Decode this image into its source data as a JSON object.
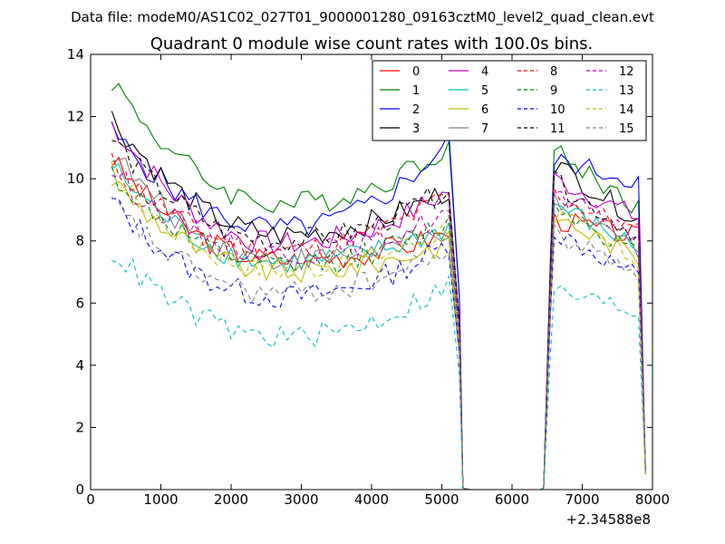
{
  "chart_data": {
    "type": "line",
    "suptitle": "Data file: modeM0/AS1C02_027T01_9000001280_09163cztM0_level2_quad_clean.evt",
    "title": "Quadrant 0 module wise count rates with 100.0s bins.",
    "xlabel": "",
    "ylabel": "",
    "x_offset_label": "+2.34588e8",
    "xlim": [
      0,
      8000
    ],
    "ylim": [
      0,
      14
    ],
    "xticks": [
      0,
      1000,
      2000,
      3000,
      4000,
      5000,
      6000,
      7000,
      8000
    ],
    "xtick_labels": [
      "0",
      "1000",
      "2000",
      "3000",
      "4000",
      "5000",
      "6000",
      "7000",
      "8000"
    ],
    "yticks": [
      0,
      2,
      4,
      6,
      8,
      10,
      12,
      14
    ],
    "ytick_labels": [
      "0",
      "2",
      "4",
      "6",
      "8",
      "10",
      "12",
      "14"
    ],
    "grid": false,
    "legend_position": "top-right",
    "legend_columns": 4,
    "gap": {
      "start": 5300,
      "end": 6450
    },
    "series": [
      {
        "name": "0",
        "color": "#ff0000",
        "dash": "solid",
        "start": 10.6,
        "minimum": 7.4,
        "end": 8.3,
        "post_start": 8.7,
        "post_end": 8.1
      },
      {
        "name": "1",
        "color": "#008000",
        "dash": "solid",
        "start": 13.2,
        "minimum": 9.2,
        "end": 11.2,
        "post_start": 10.9,
        "post_end": 9.0
      },
      {
        "name": "2",
        "color": "#0000ff",
        "dash": "solid",
        "start": 11.5,
        "minimum": 8.4,
        "end": 11.3,
        "post_start": 10.6,
        "post_end": 9.9
      },
      {
        "name": "3",
        "color": "#000000",
        "dash": "solid",
        "start": 12.0,
        "minimum": 8.2,
        "end": 9.7,
        "post_start": 10.5,
        "post_end": 8.6
      },
      {
        "name": "4",
        "color": "#bf00bf",
        "dash": "solid",
        "start": 11.8,
        "minimum": 7.9,
        "end": 9.7,
        "post_start": 10.0,
        "post_end": 8.7
      },
      {
        "name": "5",
        "color": "#00bfbf",
        "dash": "solid",
        "start": 10.4,
        "minimum": 7.3,
        "end": 8.5,
        "post_start": 9.2,
        "post_end": 7.7
      },
      {
        "name": "6",
        "color": "#bfbf00",
        "dash": "solid",
        "start": 10.0,
        "minimum": 7.0,
        "end": 8.0,
        "post_start": 8.8,
        "post_end": 7.4
      },
      {
        "name": "7",
        "color": "#808080",
        "dash": "solid",
        "start": 10.9,
        "minimum": 7.4,
        "end": 8.4,
        "post_start": 9.2,
        "post_end": 7.7
      },
      {
        "name": "8",
        "color": "#ff0000",
        "dash": "dashed",
        "start": 10.5,
        "minimum": 7.7,
        "end": 9.6,
        "post_start": 9.5,
        "post_end": 8.2
      },
      {
        "name": "9",
        "color": "#008000",
        "dash": "dashed",
        "start": 10.2,
        "minimum": 7.2,
        "end": 8.7,
        "post_start": 9.2,
        "post_end": 7.5
      },
      {
        "name": "10",
        "color": "#0000ff",
        "dash": "dashed",
        "start": 9.3,
        "minimum": 6.2,
        "end": 8.0,
        "post_start": 8.3,
        "post_end": 6.8
      },
      {
        "name": "11",
        "color": "#000000",
        "dash": "dashed",
        "start": 11.3,
        "minimum": 8.0,
        "end": 9.8,
        "post_start": 9.9,
        "post_end": 8.1
      },
      {
        "name": "12",
        "color": "#bf00bf",
        "dash": "dashed",
        "start": 10.3,
        "minimum": 7.6,
        "end": 9.0,
        "post_start": 9.4,
        "post_end": 8.2
      },
      {
        "name": "13",
        "color": "#00bfbf",
        "dash": "dashed",
        "start": 7.7,
        "minimum": 4.9,
        "end": 6.7,
        "post_start": 6.4,
        "post_end": 5.7
      },
      {
        "name": "14",
        "color": "#bfbf00",
        "dash": "dashed",
        "start": 10.2,
        "minimum": 7.1,
        "end": 8.5,
        "post_start": 8.9,
        "post_end": 7.3
      },
      {
        "name": "15",
        "color": "#808080",
        "dash": "dashed",
        "start": 9.2,
        "minimum": 6.3,
        "end": 7.8,
        "post_start": 8.2,
        "post_end": 7.0
      }
    ]
  }
}
